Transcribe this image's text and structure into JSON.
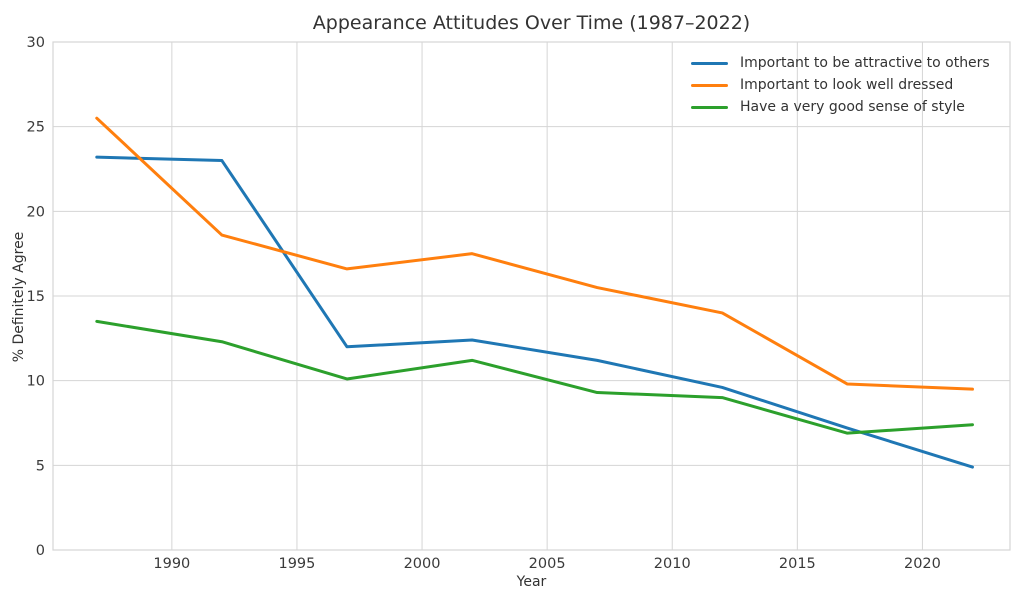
{
  "chart_data": {
    "type": "line",
    "title": "Appearance Attitudes Over Time (1987–2022)",
    "xlabel": "Year",
    "ylabel": "% Definitely Agree",
    "x": [
      1987,
      1992,
      1997,
      2002,
      2007,
      2012,
      2017,
      2022
    ],
    "series": [
      {
        "name": "Important to be attractive to others",
        "color": "#1f77b4",
        "values": [
          23.2,
          23.0,
          12.0,
          12.4,
          11.2,
          9.6,
          7.2,
          4.9
        ]
      },
      {
        "name": "Important to look well dressed",
        "color": "#ff7f0e",
        "values": [
          25.5,
          18.6,
          16.6,
          17.5,
          15.5,
          14.0,
          9.8,
          9.5
        ]
      },
      {
        "name": "Have a very good sense of style",
        "color": "#2ca02c",
        "values": [
          13.5,
          12.3,
          10.1,
          11.2,
          9.3,
          9.0,
          6.9,
          7.4
        ]
      }
    ],
    "xlim": [
      1985.25,
      2023.5
    ],
    "ylim": [
      0,
      30
    ],
    "xticks": [
      1990,
      1995,
      2000,
      2005,
      2010,
      2015,
      2020
    ],
    "yticks": [
      0,
      5,
      10,
      15,
      20,
      25,
      30
    ],
    "grid": true,
    "legend_position": "upper-right",
    "grid_color": "#d5d5d5",
    "text_color": "#3a3a3a",
    "line_width": 3
  }
}
